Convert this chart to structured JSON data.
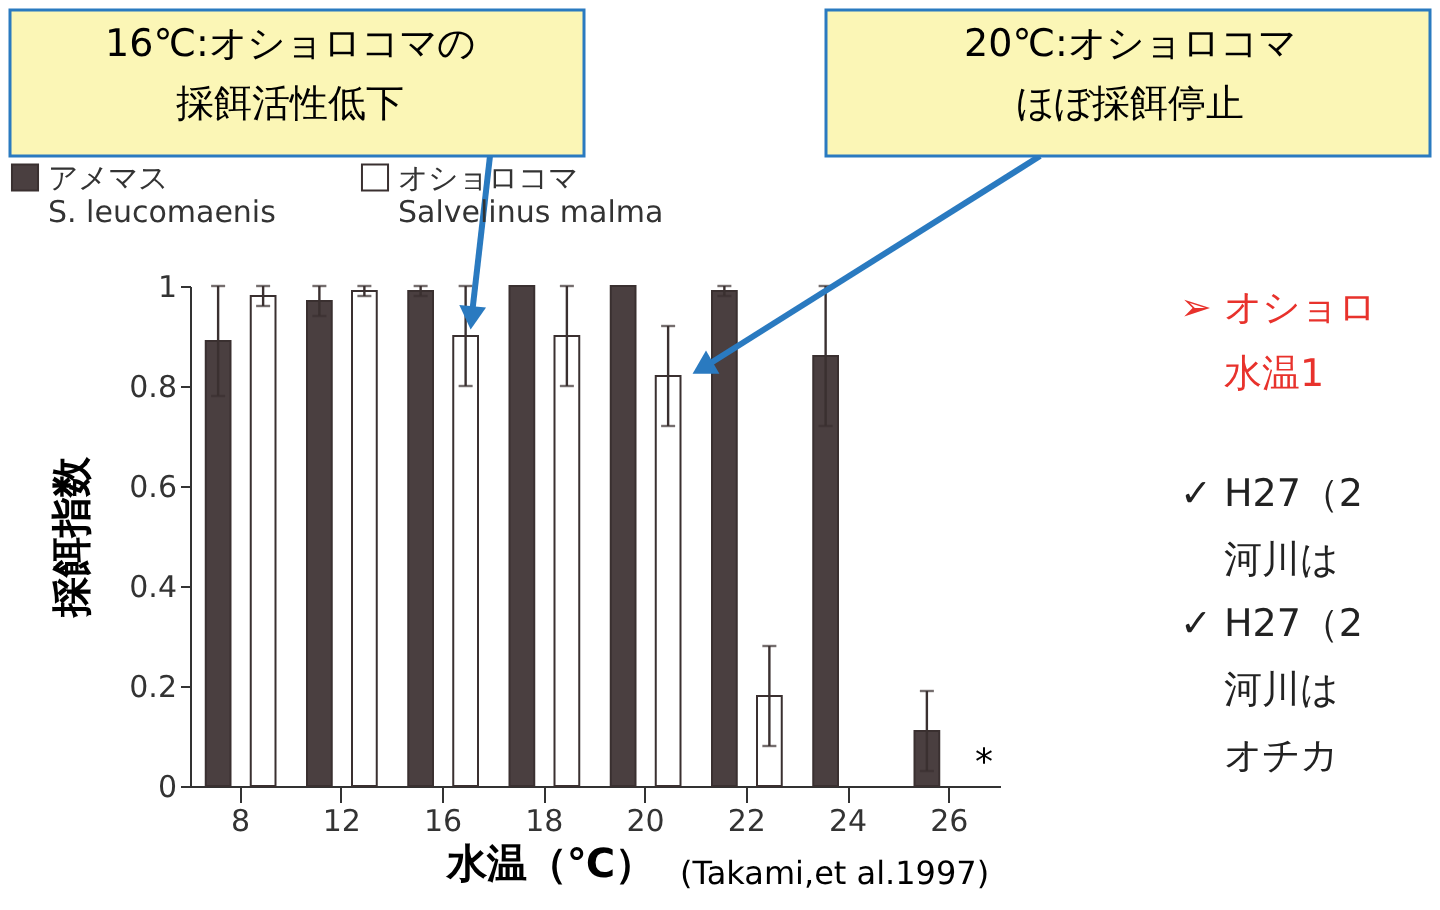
{
  "chart_data": {
    "type": "bar",
    "xlabel": "水温（℃）",
    "ylabel": "採餌指数",
    "categories": [
      "8",
      "12",
      "16",
      "18",
      "20",
      "22",
      "24",
      "26"
    ],
    "series": [
      {
        "name": "アメマス\nS. leucomaenis",
        "color": "#4a3f40",
        "values": [
          0.89,
          0.97,
          0.99,
          1.0,
          1.0,
          0.99,
          0.86,
          0.11
        ],
        "errors": [
          0.11,
          0.03,
          0.01,
          null,
          null,
          0.01,
          0.14,
          0.08
        ]
      },
      {
        "name": "オショロコマ\nSalvelinus malma",
        "color": "#ffffff",
        "values": [
          0.98,
          0.99,
          0.9,
          0.9,
          0.82,
          0.18,
          null,
          null
        ],
        "errors": [
          0.02,
          0.01,
          0.1,
          0.1,
          0.1,
          0.1,
          null,
          null
        ]
      }
    ],
    "ylim": [
      0,
      1
    ],
    "yticks": [
      0,
      0.2,
      0.4,
      0.6,
      0.8,
      1
    ],
    "grid": false,
    "legend": "top",
    "annotations": [
      "16℃:オショロコマの採餌活性低下",
      "20℃:オショロコマほぼ採餌停止",
      "*",
      "(Takami,et al.1997)",
      "➢ オショロ",
      "水温1",
      "✓ H27（2",
      "河川は",
      "✓ H27（2",
      "河川は",
      "オチカ"
    ]
  }
}
